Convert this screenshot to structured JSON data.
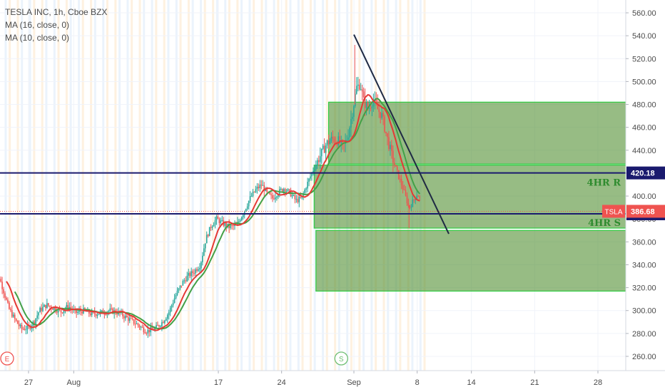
{
  "legend": {
    "symbol_line": "TESLA INC, 1h, Cboe BZX",
    "ma1": "MA (16, close, 0)",
    "ma2": "MA (10, close, 0)"
  },
  "chart_data": {
    "type": "candlestick",
    "symbol": "TSLA",
    "last_price": 386.68,
    "y_ticks": [
      260,
      280,
      300,
      320,
      340,
      360,
      380,
      400,
      420,
      440,
      460,
      480,
      500,
      520,
      540,
      560
    ],
    "y_tick_labels": [
      "260.00",
      "280.00",
      "300.00",
      "320.00",
      "340.00",
      "360.00",
      "380.00",
      "400.00",
      "420.00",
      "440.00",
      "460.00",
      "480.00",
      "500.00",
      "520.00",
      "540.00",
      "560.00"
    ],
    "ylim": [
      246,
      570
    ],
    "x_ticks": [
      {
        "label": "27",
        "d": 0
      },
      {
        "label": "Aug",
        "d": 5
      },
      {
        "label": "17",
        "d": 21
      },
      {
        "label": "24",
        "d": 28
      },
      {
        "label": "Sep",
        "d": 36
      },
      {
        "label": "8",
        "d": 43
      },
      {
        "label": "14",
        "d": 49
      },
      {
        "label": "21",
        "d": 56
      },
      {
        "label": "28",
        "d": 63
      }
    ],
    "xlim_days": [
      -4,
      67
    ],
    "price_path": [
      [
        -4,
        328
      ],
      [
        -3.5,
        336
      ],
      [
        -2.8,
        318
      ],
      [
        -2.2,
        302
      ],
      [
        -1.5,
        292
      ],
      [
        -0.8,
        284
      ],
      [
        0,
        285
      ],
      [
        0.6,
        290
      ],
      [
        1.2,
        300
      ],
      [
        2,
        305
      ],
      [
        2.8,
        302
      ],
      [
        3.6,
        299
      ],
      [
        4.4,
        304
      ],
      [
        5.2,
        298
      ],
      [
        6,
        300
      ],
      [
        7,
        297
      ],
      [
        8,
        298
      ],
      [
        9,
        300
      ],
      [
        10,
        298
      ],
      [
        11,
        293
      ],
      [
        12,
        288
      ],
      [
        13,
        282
      ],
      [
        14,
        284
      ],
      [
        14.8,
        290
      ],
      [
        15.5,
        298
      ],
      [
        16.2,
        312
      ],
      [
        17,
        324
      ],
      [
        17.6,
        330
      ],
      [
        18.3,
        334
      ],
      [
        19,
        340
      ],
      [
        19.6,
        362
      ],
      [
        20.2,
        374
      ],
      [
        20.8,
        380
      ],
      [
        21.5,
        376
      ],
      [
        22.2,
        373
      ],
      [
        23,
        374
      ],
      [
        23.8,
        386
      ],
      [
        24.5,
        398
      ],
      [
        25.2,
        406
      ],
      [
        25.8,
        410
      ],
      [
        26.4,
        402
      ],
      [
        27,
        398
      ],
      [
        27.6,
        403
      ],
      [
        28.3,
        407
      ],
      [
        29,
        402
      ],
      [
        29.6,
        396
      ],
      [
        30.2,
        398
      ],
      [
        30.8,
        410
      ],
      [
        31.5,
        423
      ],
      [
        32.2,
        434
      ],
      [
        33,
        446
      ],
      [
        33.6,
        450
      ],
      [
        34.3,
        448
      ],
      [
        34.8,
        442
      ],
      [
        35.3,
        452
      ],
      [
        35.8,
        472
      ],
      [
        36.3,
        495
      ],
      [
        36.7,
        498
      ],
      [
        37.1,
        482
      ],
      [
        37.6,
        476
      ],
      [
        38.1,
        484
      ],
      [
        38.6,
        476
      ],
      [
        39.1,
        470
      ],
      [
        39.7,
        450
      ],
      [
        40.3,
        432
      ],
      [
        40.9,
        418
      ],
      [
        41.5,
        405
      ],
      [
        42.1,
        390
      ],
      [
        42.6,
        396
      ],
      [
        43.0,
        402
      ],
      [
        43.3,
        398
      ]
    ],
    "wick_min": 372,
    "wick_max": 532,
    "levels": [
      {
        "name": "4HR R",
        "value": 420.18,
        "label": "420.18",
        "color": "#1a1a6e"
      },
      {
        "name": "4HR S",
        "value": 384.49,
        "label": "384.49",
        "color": "#1a1a6e"
      }
    ],
    "resistance_label": "4HR R",
    "support_label": "4HR S",
    "boxes": [
      {
        "d0": 33.2,
        "d1": 67,
        "top": 482,
        "bottom": 428
      },
      {
        "d0": 31.6,
        "d1": 67,
        "top": 427,
        "bottom": 372
      },
      {
        "d0": 31.8,
        "d1": 67,
        "top": 370,
        "bottom": 317
      }
    ],
    "trendline": {
      "d0": 36,
      "p0": 541,
      "d1": 46.5,
      "p1": 367
    },
    "session_markers": [
      {
        "label": "E",
        "d": -3.6
      },
      {
        "label": "S",
        "d": 34.6
      }
    ],
    "colors": {
      "up": "#26a69a",
      "down": "#ef5350",
      "ma16": "#43a047",
      "ma10": "#e53935",
      "box_fill": "#4c8b2b",
      "box_stroke": "#2ecc40",
      "level_line": "#1a1a6e",
      "last_price": "#ef5350",
      "trendline": "#1f2a44",
      "level_text": "#2e8b2e"
    }
  }
}
